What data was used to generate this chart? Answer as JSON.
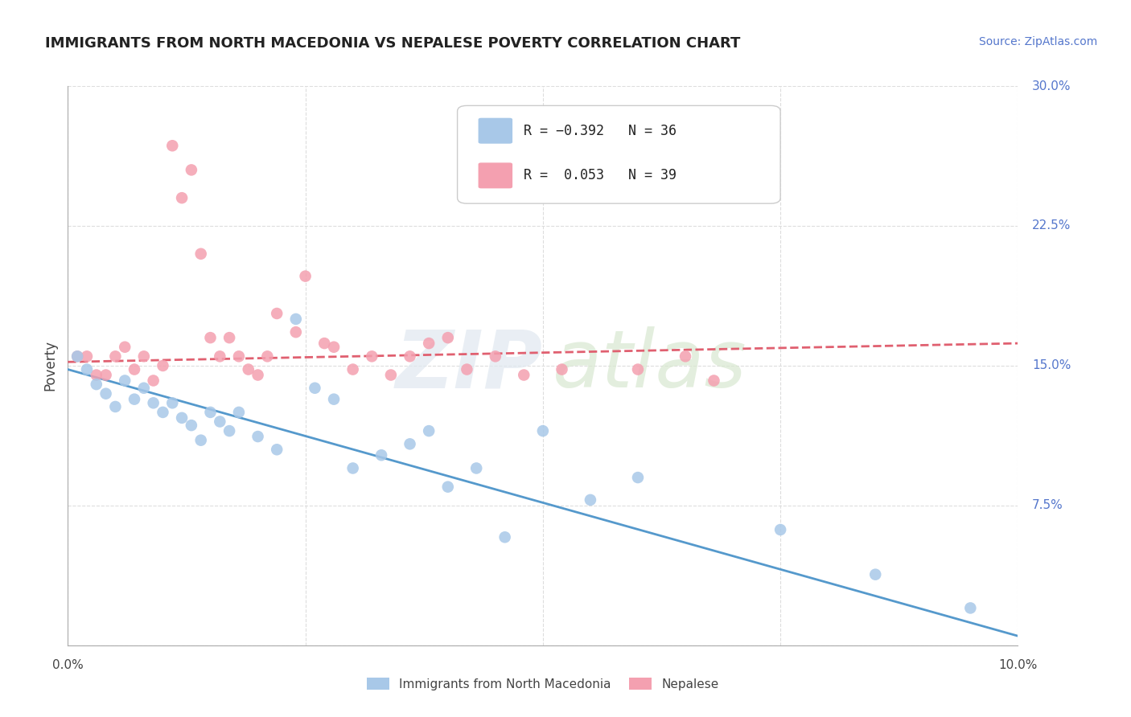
{
  "title": "IMMIGRANTS FROM NORTH MACEDONIA VS NEPALESE POVERTY CORRELATION CHART",
  "source": "Source: ZipAtlas.com",
  "ylabel": "Poverty",
  "color_blue": "#a8c8e8",
  "color_pink": "#f4a0b0",
  "color_blue_line": "#5599cc",
  "color_pink_line": "#e06070",
  "blue_x": [
    0.001,
    0.002,
    0.003,
    0.004,
    0.005,
    0.006,
    0.007,
    0.008,
    0.009,
    0.01,
    0.011,
    0.012,
    0.013,
    0.014,
    0.015,
    0.016,
    0.017,
    0.018,
    0.02,
    0.022,
    0.024,
    0.026,
    0.028,
    0.03,
    0.033,
    0.036,
    0.038,
    0.04,
    0.043,
    0.046,
    0.05,
    0.055,
    0.06,
    0.075,
    0.085,
    0.095
  ],
  "blue_y": [
    0.155,
    0.148,
    0.14,
    0.135,
    0.128,
    0.142,
    0.132,
    0.138,
    0.13,
    0.125,
    0.13,
    0.122,
    0.118,
    0.11,
    0.125,
    0.12,
    0.115,
    0.125,
    0.112,
    0.105,
    0.175,
    0.138,
    0.132,
    0.095,
    0.102,
    0.108,
    0.115,
    0.085,
    0.095,
    0.058,
    0.115,
    0.078,
    0.09,
    0.062,
    0.038,
    0.02
  ],
  "pink_x": [
    0.001,
    0.002,
    0.003,
    0.004,
    0.005,
    0.006,
    0.007,
    0.008,
    0.009,
    0.01,
    0.011,
    0.012,
    0.013,
    0.014,
    0.015,
    0.016,
    0.017,
    0.018,
    0.019,
    0.02,
    0.021,
    0.022,
    0.024,
    0.025,
    0.027,
    0.028,
    0.03,
    0.032,
    0.034,
    0.036,
    0.038,
    0.04,
    0.042,
    0.045,
    0.048,
    0.052,
    0.06,
    0.065,
    0.068
  ],
  "pink_y": [
    0.155,
    0.155,
    0.145,
    0.145,
    0.155,
    0.16,
    0.148,
    0.155,
    0.142,
    0.15,
    0.268,
    0.24,
    0.255,
    0.21,
    0.165,
    0.155,
    0.165,
    0.155,
    0.148,
    0.145,
    0.155,
    0.178,
    0.168,
    0.198,
    0.162,
    0.16,
    0.148,
    0.155,
    0.145,
    0.155,
    0.162,
    0.165,
    0.148,
    0.155,
    0.145,
    0.148,
    0.148,
    0.155,
    0.142
  ],
  "blue_line_x0": 0.0,
  "blue_line_y0": 0.148,
  "blue_line_x1": 0.1,
  "blue_line_y1": 0.005,
  "pink_line_x0": 0.0,
  "pink_line_y0": 0.152,
  "pink_line_x1": 0.1,
  "pink_line_y1": 0.162,
  "xmin": 0.0,
  "xmax": 0.1,
  "ymin": 0.0,
  "ymax": 0.3,
  "ytick_positions": [
    0.0,
    0.075,
    0.15,
    0.225,
    0.3
  ],
  "ytick_labels_right": [
    "",
    "7.5%",
    "15.0%",
    "22.5%",
    "30.0%"
  ],
  "xtick_left_label": "0.0%",
  "xtick_right_label": "10.0%",
  "legend_text_blue": "R = −0.392   N = 36",
  "legend_text_pink": "R =  0.053   N = 39",
  "watermark_line1": "ZIP",
  "watermark_line2": "atlas",
  "bottom_legend_blue": "Immigrants from North Macedonia",
  "bottom_legend_pink": "Nepalese",
  "title_fontsize": 13,
  "source_fontsize": 10,
  "axis_label_fontsize": 12,
  "tick_label_fontsize": 11,
  "legend_fontsize": 12,
  "scatter_size": 110,
  "line_width": 2.0,
  "grid_color": "#dddddd",
  "spine_color": "#aaaaaa",
  "right_tick_color": "#5577cc",
  "title_color": "#222222",
  "source_color": "#5577cc"
}
